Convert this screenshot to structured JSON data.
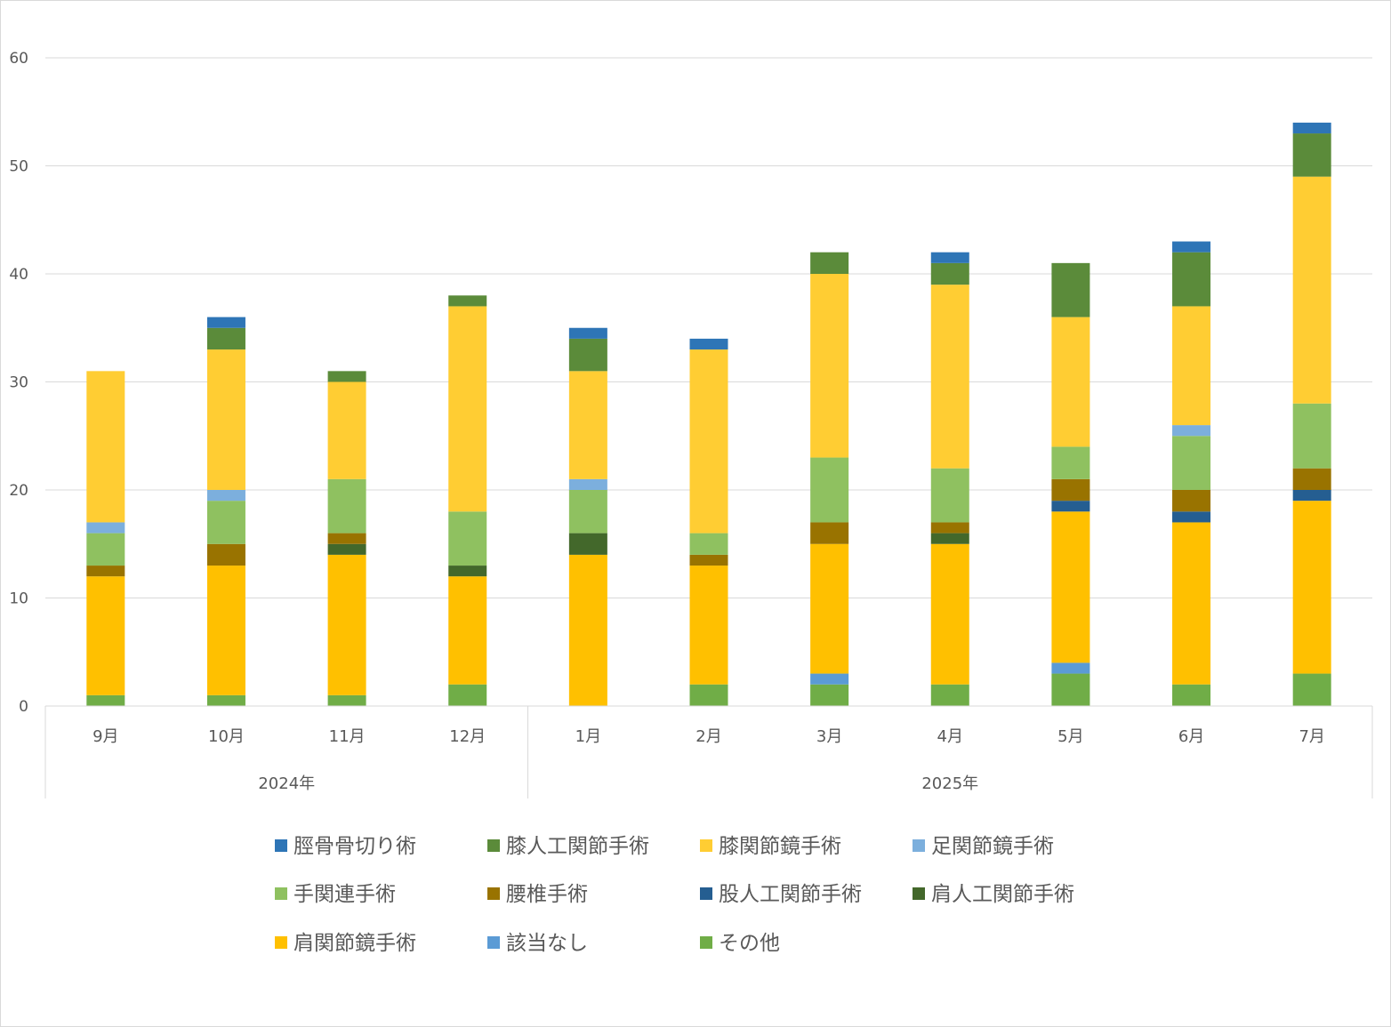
{
  "chart_data": {
    "type": "bar",
    "stacked": true,
    "ylim": [
      0,
      60
    ],
    "yticks": [
      0,
      10,
      20,
      30,
      40,
      50,
      60
    ],
    "grid": true,
    "legend_position": "bottom",
    "categories": [
      "9月",
      "10月",
      "11月",
      "12月",
      "1月",
      "2月",
      "3月",
      "4月",
      "5月",
      "6月",
      "7月"
    ],
    "groups": [
      {
        "label": "2024年",
        "count": 4
      },
      {
        "label": "2025年",
        "count": 7
      }
    ],
    "series": [
      {
        "name": "その他",
        "color": "#70ad47",
        "values": [
          1,
          1,
          1,
          2,
          0,
          2,
          2,
          2,
          3,
          2,
          3
        ]
      },
      {
        "name": "該当なし",
        "color": "#5b9bd5",
        "values": [
          0,
          0,
          0,
          0,
          0,
          0,
          1,
          0,
          1,
          0,
          0
        ]
      },
      {
        "name": "肩関節鏡手術",
        "color": "#ffc000",
        "values": [
          11,
          12,
          13,
          10,
          14,
          11,
          12,
          13,
          14,
          15,
          16
        ]
      },
      {
        "name": "肩人工関節手術",
        "color": "#43682b",
        "values": [
          0,
          0,
          1,
          1,
          2,
          0,
          0,
          1,
          0,
          0,
          0
        ]
      },
      {
        "name": "股人工関節手術",
        "color": "#255e91",
        "values": [
          0,
          0,
          0,
          0,
          0,
          0,
          0,
          0,
          1,
          1,
          1
        ]
      },
      {
        "name": "腰椎手術",
        "color": "#997300",
        "values": [
          1,
          2,
          1,
          0,
          0,
          1,
          2,
          1,
          2,
          2,
          2
        ]
      },
      {
        "name": "手関連手術",
        "color": "#8fc160",
        "values": [
          3,
          4,
          5,
          5,
          4,
          2,
          6,
          5,
          3,
          5,
          6
        ]
      },
      {
        "name": "足関節鏡手術",
        "color": "#7cafdd",
        "values": [
          1,
          1,
          0,
          0,
          1,
          0,
          0,
          0,
          0,
          1,
          0
        ]
      },
      {
        "name": "膝関節鏡手術",
        "color": "#ffcd33",
        "values": [
          14,
          13,
          9,
          19,
          10,
          17,
          17,
          17,
          12,
          11,
          21
        ]
      },
      {
        "name": "膝人工関節手術",
        "color": "#5b8b3a",
        "values": [
          0,
          2,
          1,
          1,
          3,
          0,
          2,
          2,
          5,
          5,
          4
        ]
      },
      {
        "name": "脛骨骨切り術",
        "color": "#2e75b6",
        "values": [
          0,
          1,
          0,
          0,
          1,
          1,
          0,
          1,
          0,
          1,
          1
        ]
      }
    ],
    "legend_order": [
      "脛骨骨切り術",
      "膝人工関節手術",
      "膝関節鏡手術",
      "足関節鏡手術",
      "手関連手術",
      "腰椎手術",
      "股人工関節手術",
      "肩人工関節手術",
      "肩関節鏡手術",
      "該当なし",
      "その他"
    ]
  }
}
